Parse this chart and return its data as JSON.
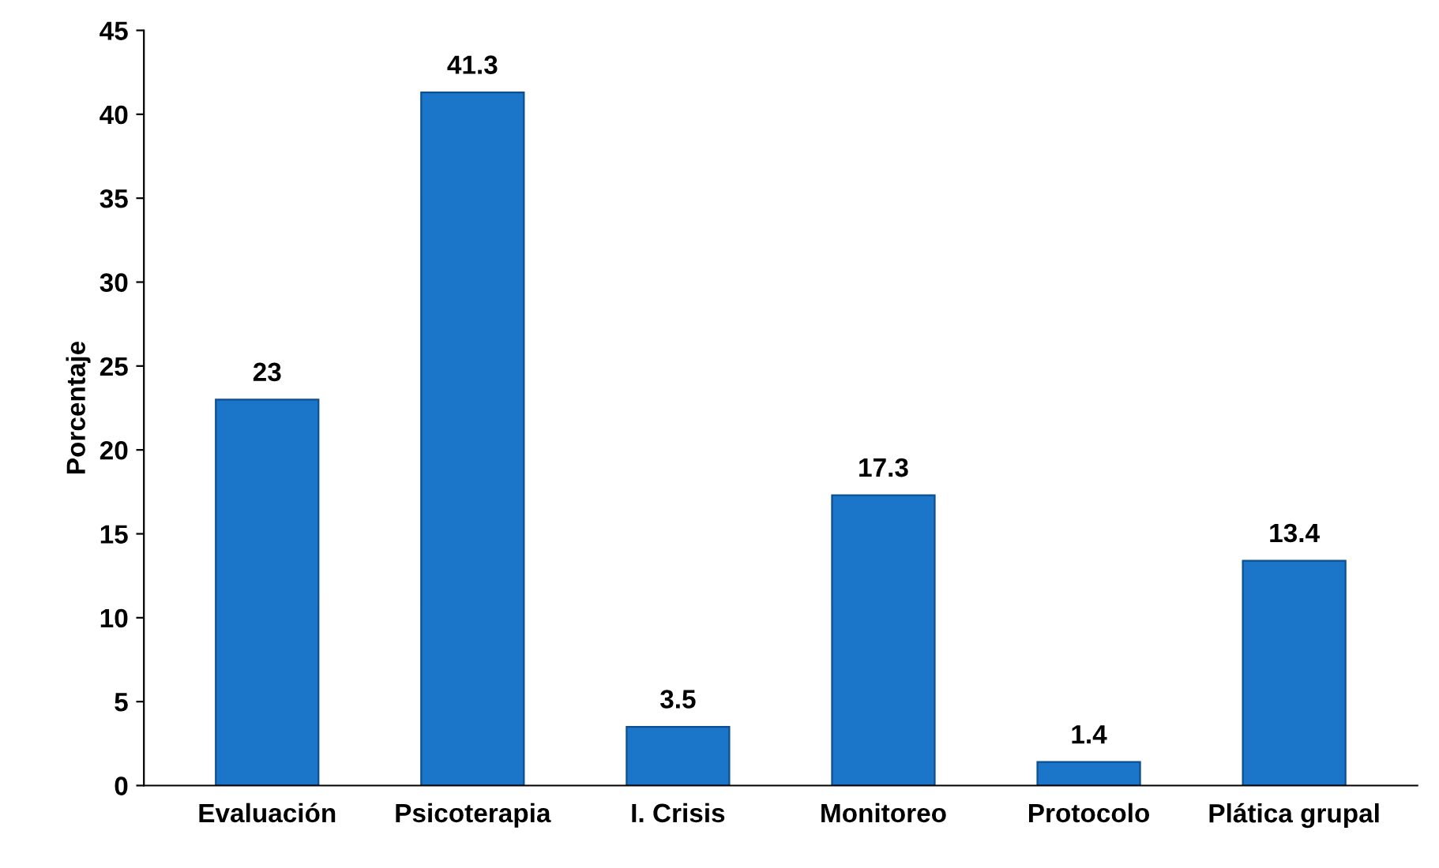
{
  "chart_data": {
    "type": "bar",
    "ylabel": "Porcentaje",
    "categories": [
      "Evaluación",
      "Psicoterapia",
      "I. Crisis",
      "Monitoreo",
      "Protocolo",
      "Plática grupal"
    ],
    "values": [
      23,
      41.3,
      3.5,
      17.3,
      1.4,
      13.4
    ],
    "color": "#1b75c9",
    "ylim": [
      0,
      45
    ],
    "yticks": [
      0,
      5,
      10,
      15,
      20,
      25,
      30,
      35,
      40,
      45
    ],
    "data_labels": true,
    "grid": false
  }
}
